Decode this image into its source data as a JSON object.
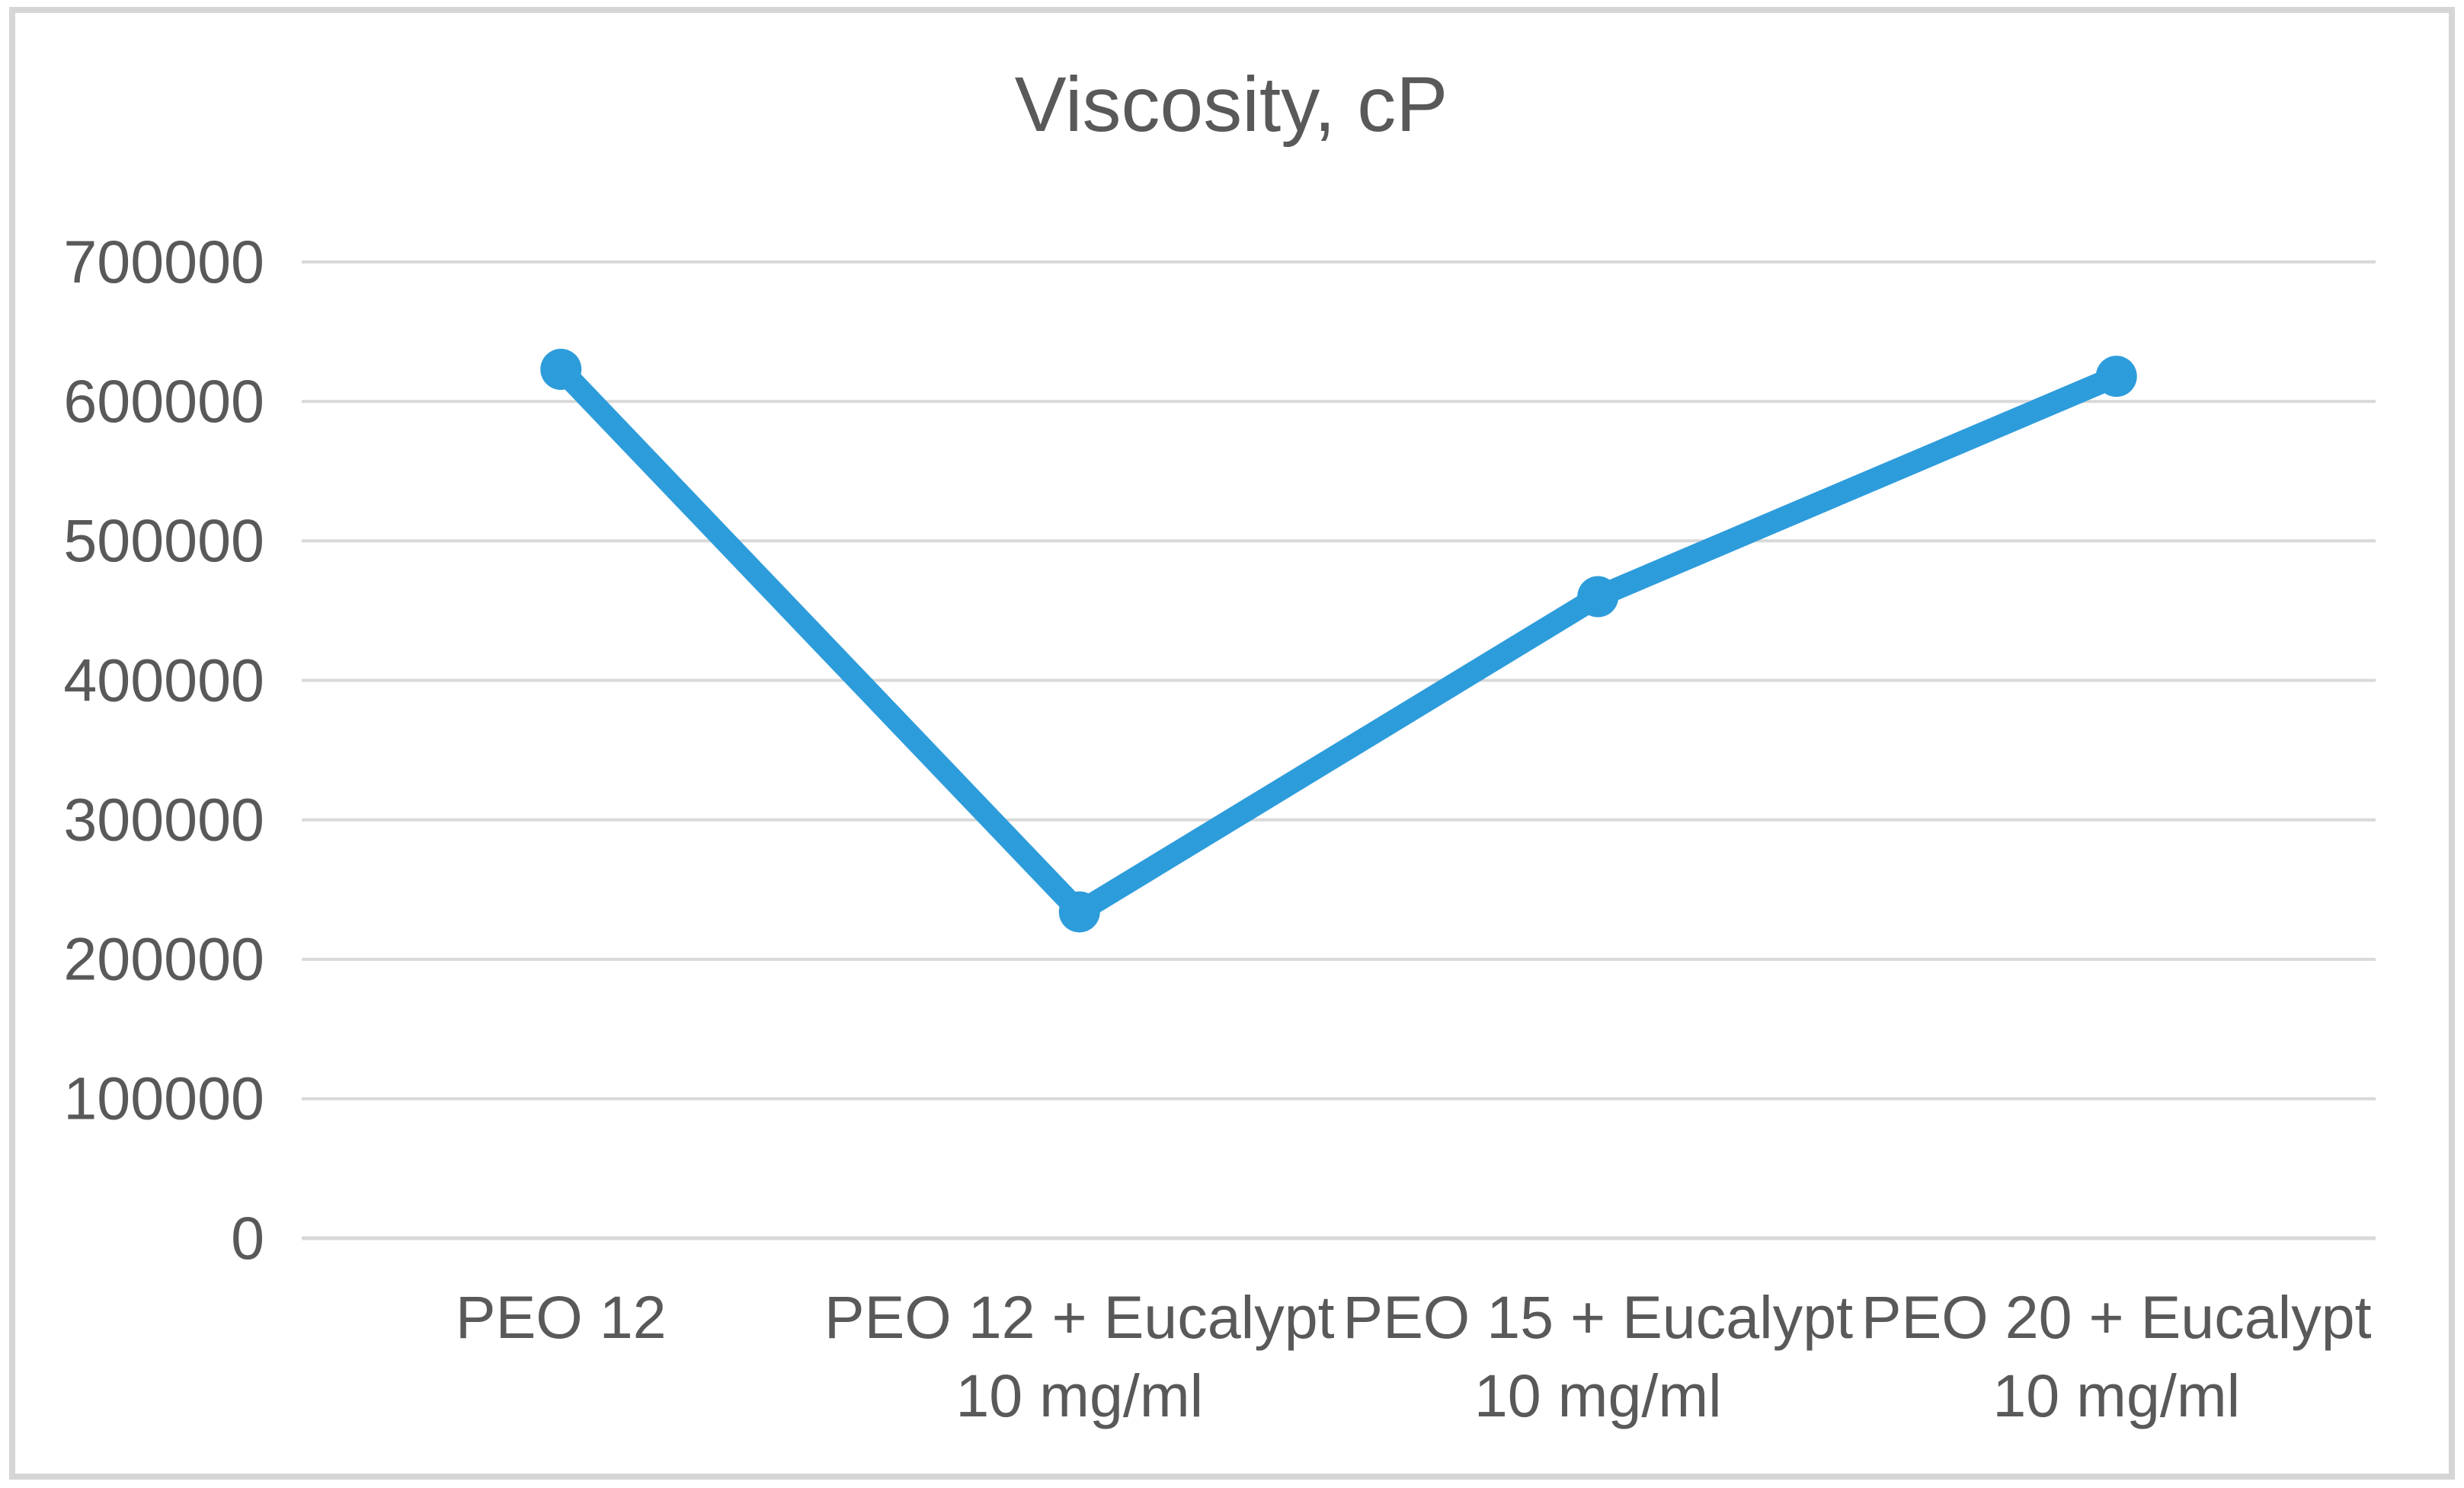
{
  "chart": {
    "title": "Viscosity, cP"
  },
  "chart_data": {
    "type": "line",
    "title": "Viscosity, cP",
    "categories": [
      "PEO 12",
      "PEO 12 + Eucalypt 10 mg/ml",
      "PEO 15 + Eucalypt 10 mg/ml",
      "PEO 20 + Eucalypt 10 mg/ml"
    ],
    "category_label_lines": [
      [
        "PEO 12"
      ],
      [
        "PEO 12 + Eucalypt",
        "10 mg/ml"
      ],
      [
        "PEO 15 + Eucalypt",
        "10 mg/ml"
      ],
      [
        "PEO 20 + Eucalypt",
        "10 mg/ml"
      ]
    ],
    "series": [
      {
        "name": "Viscosity, cP",
        "values": [
          623000,
          234000,
          460000,
          618000
        ]
      }
    ],
    "xlabel": "",
    "ylabel": "",
    "ylim": [
      0,
      700000
    ],
    "ytick_step": 100000,
    "ytick_labels": [
      "0",
      "100000",
      "200000",
      "300000",
      "400000",
      "500000",
      "600000",
      "700000"
    ],
    "grid": true,
    "legend": false,
    "marker": "circle",
    "colors": {
      "series": "#2D9CDB",
      "gridline": "#D9D9D9",
      "axis_line": "#D9D9D9",
      "text": "#595959",
      "frame_border": "#D6D6D6",
      "background": "#FFFFFF"
    }
  }
}
